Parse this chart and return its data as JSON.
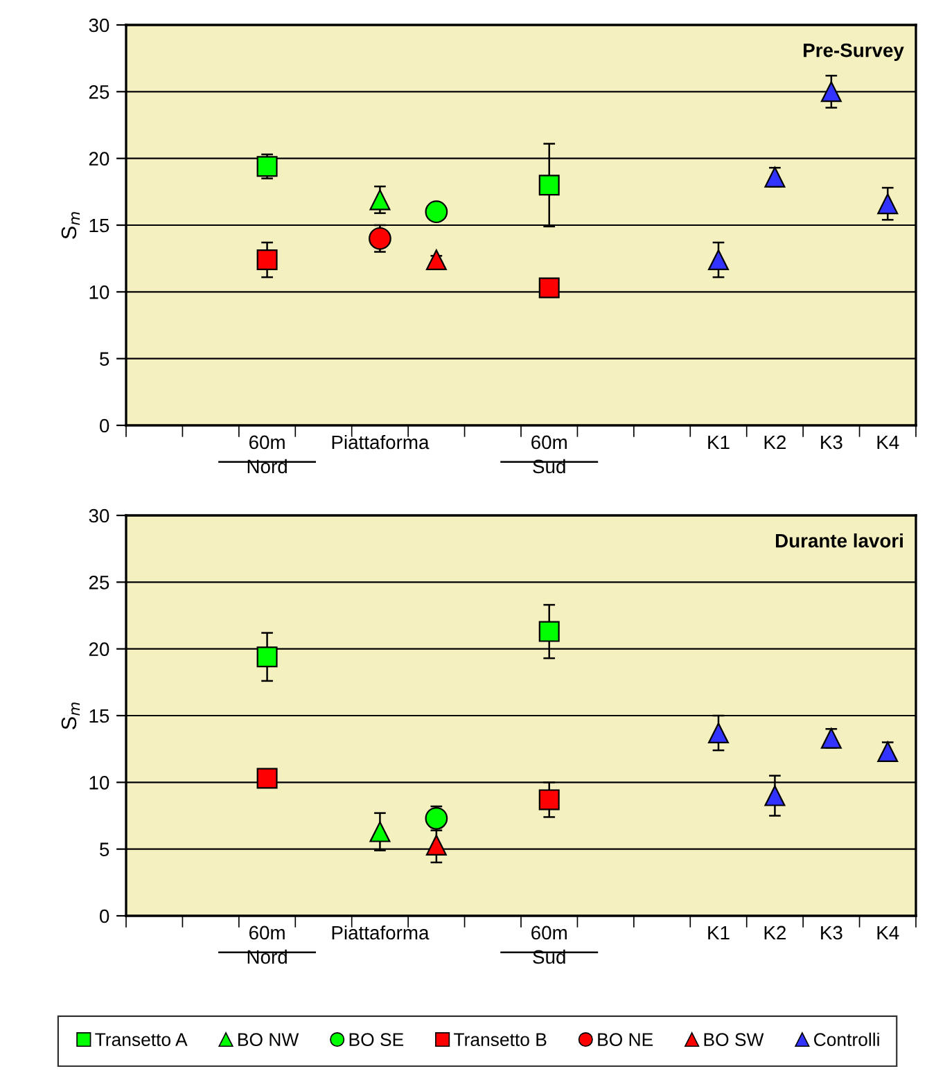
{
  "chart_data": [
    {
      "type": "scatter",
      "title": "Pre-Survey",
      "ylabel": "S$_{m}$",
      "ylim": [
        0,
        30
      ],
      "yticks": [
        0,
        5,
        10,
        15,
        20,
        25,
        30
      ],
      "grid": "y",
      "categories": [
        null,
        null,
        "60m\nNord",
        null,
        "Piattaforma",
        null,
        null,
        "60m\nSud",
        null,
        null,
        "K1",
        "K2",
        "K3",
        "K4"
      ],
      "series": [
        {
          "color": "#00ff00",
          "marker": "square",
          "values": [
            null,
            null,
            19.4,
            null,
            null,
            null,
            null,
            18.0,
            null,
            null,
            null,
            null,
            null,
            null
          ],
          "errors": [
            null,
            null,
            0.9,
            null,
            null,
            null,
            null,
            3.1,
            null,
            null,
            null,
            null,
            null,
            null
          ]
        },
        {
          "color": "#00ff00",
          "marker": "triangle",
          "values": [
            null,
            null,
            null,
            null,
            16.9,
            null,
            null,
            null,
            null,
            null,
            null,
            null,
            null,
            null
          ],
          "errors": [
            null,
            null,
            null,
            null,
            1.0,
            null,
            null,
            null,
            null,
            null,
            null,
            null,
            null,
            null
          ]
        },
        {
          "color": "#00ff00",
          "marker": "circle",
          "values": [
            null,
            null,
            null,
            null,
            null,
            16.0,
            null,
            null,
            null,
            null,
            null,
            null,
            null,
            null
          ]
        },
        {
          "color": "#ff0000",
          "marker": "square",
          "values": [
            null,
            null,
            12.4,
            null,
            null,
            null,
            null,
            10.3,
            null,
            null,
            null,
            null,
            null,
            null
          ],
          "errors": [
            null,
            null,
            1.3,
            null,
            null,
            null,
            null,
            null,
            null,
            null,
            null,
            null,
            null,
            null
          ]
        },
        {
          "color": "#ff0000",
          "marker": "circle",
          "values": [
            null,
            null,
            null,
            null,
            14.0,
            null,
            null,
            null,
            null,
            null,
            null,
            null,
            null,
            null
          ],
          "errors": [
            null,
            null,
            null,
            null,
            1.0,
            null,
            null,
            null,
            null,
            null,
            null,
            null,
            null,
            null
          ]
        },
        {
          "color": "#ff0000",
          "marker": "triangle",
          "values": [
            null,
            null,
            null,
            null,
            null,
            12.4,
            null,
            null,
            null,
            null,
            null,
            null,
            null,
            null
          ],
          "errors": [
            null,
            null,
            null,
            null,
            null,
            0.3,
            null,
            null,
            null,
            null,
            null,
            null,
            null,
            null
          ]
        },
        {
          "color": "#3333ff",
          "marker": "triangle",
          "values": [
            null,
            null,
            null,
            null,
            null,
            null,
            null,
            null,
            null,
            null,
            12.4,
            18.6,
            25.0,
            16.6
          ],
          "errors": [
            null,
            null,
            null,
            null,
            null,
            null,
            null,
            null,
            null,
            null,
            1.3,
            0.7,
            1.2,
            1.2
          ]
        }
      ]
    },
    {
      "type": "scatter",
      "title": "Durante lavori",
      "ylabel": "S$_{m}$",
      "ylim": [
        0,
        30
      ],
      "yticks": [
        0,
        5,
        10,
        15,
        20,
        25,
        30
      ],
      "grid": "y",
      "legend": "bottom",
      "categories": [
        null,
        null,
        "60m\nNord",
        null,
        "Piattaforma",
        null,
        null,
        "60m\nSud",
        null,
        null,
        "K1",
        "K2",
        "K3",
        "K4"
      ],
      "series": [
        {
          "name": "Transetto A",
          "color": "#00ff00",
          "marker": "square",
          "values": [
            null,
            null,
            19.4,
            null,
            null,
            null,
            null,
            21.3,
            null,
            null,
            null,
            null,
            null,
            null
          ],
          "errors": [
            null,
            null,
            1.8,
            null,
            null,
            null,
            null,
            2.0,
            null,
            null,
            null,
            null,
            null,
            null
          ]
        },
        {
          "name": "BO NW",
          "color": "#00ff00",
          "marker": "triangle",
          "values": [
            null,
            null,
            null,
            null,
            6.3,
            null,
            null,
            null,
            null,
            null,
            null,
            null,
            null,
            null
          ],
          "errors": [
            null,
            null,
            null,
            null,
            1.4,
            null,
            null,
            null,
            null,
            null,
            null,
            null,
            null,
            null
          ]
        },
        {
          "name": "BO SE",
          "color": "#00ff00",
          "marker": "circle",
          "values": [
            null,
            null,
            null,
            null,
            null,
            7.3,
            null,
            null,
            null,
            null,
            null,
            null,
            null,
            null
          ],
          "errors": [
            null,
            null,
            null,
            null,
            null,
            0.9,
            null,
            null,
            null,
            null,
            null,
            null,
            null,
            null
          ]
        },
        {
          "name": "Transetto B",
          "color": "#ff0000",
          "marker": "square",
          "values": [
            null,
            null,
            10.3,
            null,
            null,
            null,
            null,
            8.7,
            null,
            null,
            null,
            null,
            null,
            null
          ],
          "errors": [
            null,
            null,
            null,
            null,
            null,
            null,
            null,
            1.3,
            null,
            null,
            null,
            null,
            null,
            null
          ]
        },
        {
          "name": "BO NE",
          "color": "#ff0000",
          "marker": "circle",
          "values": [
            null,
            null,
            null,
            null,
            null,
            null,
            null,
            null,
            null,
            null,
            null,
            null,
            null,
            null
          ]
        },
        {
          "name": "BO SW",
          "color": "#ff0000",
          "marker": "triangle",
          "values": [
            null,
            null,
            null,
            null,
            null,
            5.3,
            null,
            null,
            null,
            null,
            null,
            null,
            null,
            null
          ],
          "errors": [
            null,
            null,
            null,
            null,
            null,
            1.3,
            null,
            null,
            null,
            null,
            null,
            null,
            null,
            null
          ]
        },
        {
          "name": "Controlli",
          "color": "#3333ff",
          "marker": "triangle",
          "values": [
            null,
            null,
            null,
            null,
            null,
            null,
            null,
            null,
            null,
            null,
            13.7,
            9.0,
            13.3,
            12.3
          ],
          "errors": [
            null,
            null,
            null,
            null,
            null,
            null,
            null,
            null,
            null,
            null,
            1.3,
            1.5,
            0.7,
            0.7
          ]
        }
      ]
    }
  ]
}
